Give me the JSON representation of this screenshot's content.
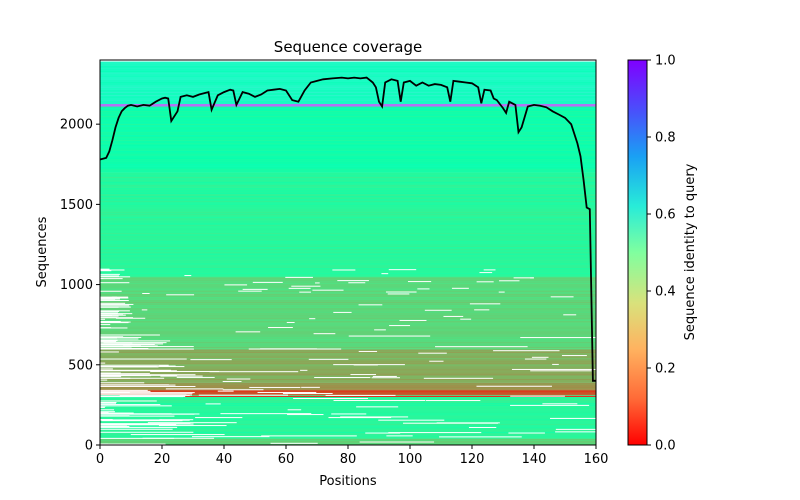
{
  "chart_data": {
    "type": "heatmap",
    "title": "Sequence coverage",
    "xlabel": "Positions",
    "ylabel": "Sequences",
    "xlim": [
      0,
      160
    ],
    "ylim": [
      0,
      2400
    ],
    "xticks": [
      0,
      20,
      40,
      60,
      80,
      100,
      120,
      140,
      160
    ],
    "yticks": [
      0,
      500,
      1000,
      1500,
      2000
    ],
    "grid": false,
    "colorbar": {
      "label": "Sequence identity to query",
      "colormap": "rainbow_r",
      "range": [
        0,
        1
      ],
      "ticks": [
        "0.0",
        "0.2",
        "0.4",
        "0.6",
        "0.8",
        "1.0"
      ]
    },
    "identity_bands": [
      {
        "from": 0,
        "to": 40,
        "identity": 0.3
      },
      {
        "from": 40,
        "to": 300,
        "identity": 0.42
      },
      {
        "from": 300,
        "to": 305,
        "identity": 0.0
      },
      {
        "from": 305,
        "to": 310,
        "identity": 0.4
      },
      {
        "from": 310,
        "to": 345,
        "identity": 0.1
      },
      {
        "from": 345,
        "to": 390,
        "identity": 0.2
      },
      {
        "from": 390,
        "to": 600,
        "identity": 0.24
      },
      {
        "from": 600,
        "to": 1050,
        "identity": 0.32
      },
      {
        "from": 1050,
        "to": 1700,
        "identity": 0.42
      },
      {
        "from": 1700,
        "to": 2110,
        "identity": 0.47
      },
      {
        "from": 2110,
        "to": 2125,
        "identity": 0.85
      },
      {
        "from": 2125,
        "to": 2390,
        "identity": 0.55
      }
    ],
    "coverage_line": {
      "color": "#000000",
      "x": [
        0,
        2,
        3,
        4,
        5,
        6,
        7,
        8,
        9,
        10,
        12,
        14,
        16,
        18,
        20,
        21,
        22,
        23,
        25,
        26,
        28,
        30,
        32,
        34,
        35,
        36,
        38,
        40,
        42,
        43,
        44,
        46,
        48,
        50,
        52,
        54,
        56,
        58,
        60,
        62,
        64,
        66,
        68,
        70,
        72,
        75,
        78,
        80,
        82,
        84,
        86,
        88,
        89,
        90,
        91,
        92,
        94,
        96,
        97,
        98,
        100,
        102,
        104,
        106,
        108,
        110,
        112,
        113,
        114,
        116,
        118,
        120,
        122,
        123,
        124,
        126,
        127,
        128,
        130,
        131,
        132,
        134,
        135,
        136,
        138,
        140,
        142,
        144,
        146,
        148,
        150,
        152,
        154,
        155,
        156,
        157,
        158,
        159,
        160
      ],
      "y": [
        1780,
        1790,
        1830,
        1900,
        1980,
        2040,
        2080,
        2100,
        2115,
        2120,
        2110,
        2120,
        2115,
        2140,
        2160,
        2165,
        2160,
        2020,
        2080,
        2170,
        2180,
        2170,
        2185,
        2195,
        2200,
        2090,
        2180,
        2200,
        2215,
        2210,
        2120,
        2200,
        2190,
        2170,
        2185,
        2210,
        2215,
        2220,
        2210,
        2150,
        2140,
        2210,
        2260,
        2270,
        2280,
        2285,
        2290,
        2285,
        2290,
        2285,
        2290,
        2260,
        2230,
        2140,
        2110,
        2260,
        2280,
        2270,
        2140,
        2260,
        2270,
        2240,
        2260,
        2240,
        2250,
        2245,
        2230,
        2140,
        2270,
        2265,
        2260,
        2255,
        2230,
        2130,
        2215,
        2210,
        2160,
        2150,
        2100,
        2070,
        2140,
        2120,
        1950,
        1980,
        2110,
        2120,
        2115,
        2105,
        2080,
        2060,
        2040,
        2000,
        1880,
        1800,
        1650,
        1480,
        1470,
        400,
        400
      ]
    }
  }
}
